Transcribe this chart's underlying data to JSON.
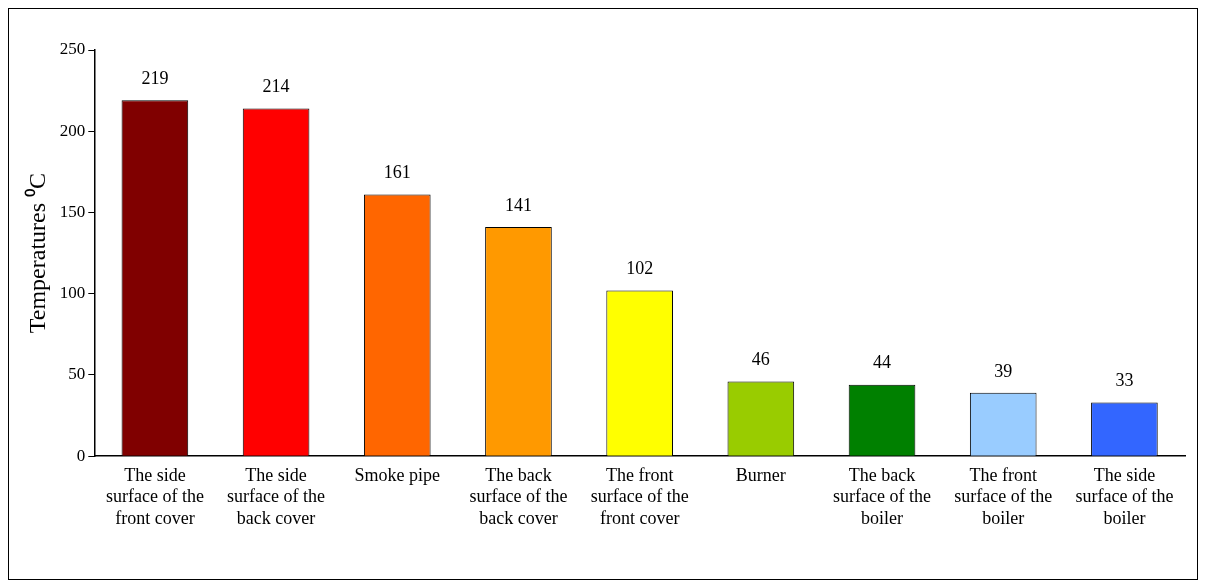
{
  "chart_data": {
    "type": "bar",
    "ylabel": "Temperatures ⁰C",
    "categories": [
      "The side surface of the front  cover",
      "The side surface of the back cover",
      "Smoke pipe",
      "The back surface of the back cover",
      "The front surface of the front cover",
      "Burner",
      "The back surface of the boiler",
      "The front surface of the boiler",
      "The side surface of the boiler"
    ],
    "values": [
      219,
      214,
      161,
      141,
      102,
      46,
      44,
      39,
      33
    ],
    "colors": [
      "#800000",
      "#ff0000",
      "#ff6600",
      "#ff9900",
      "#ffff00",
      "#99cc00",
      "#008000",
      "#99ccff",
      "#3366ff"
    ],
    "ylim": [
      0,
      250
    ],
    "yticks": [
      0,
      50,
      100,
      150,
      200,
      250
    ],
    "grid": false,
    "legend": false,
    "data_labels": true
  }
}
